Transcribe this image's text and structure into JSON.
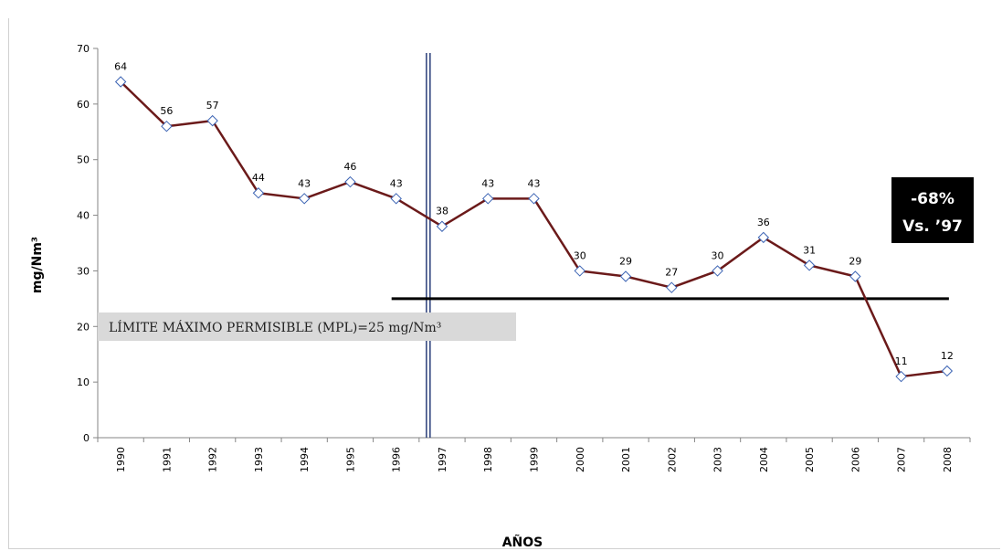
{
  "chart_data": {
    "type": "line",
    "title": "",
    "xlabel": "AÑOS",
    "ylabel": "mg/Nm³",
    "ylim": [
      0,
      70
    ],
    "yticks": [
      0,
      10,
      20,
      30,
      40,
      50,
      60,
      70
    ],
    "categories": [
      "1990",
      "1991",
      "1992",
      "1993",
      "1994",
      "1995",
      "1996",
      "1997",
      "1998",
      "1999",
      "2000",
      "2001",
      "2002",
      "2003",
      "2004",
      "2005",
      "2006",
      "2007",
      "2008"
    ],
    "series": [
      {
        "values": [
          64,
          56,
          57,
          44,
          43,
          46,
          43,
          38,
          43,
          43,
          30,
          29,
          27,
          30,
          36,
          31,
          29,
          11,
          12
        ],
        "color": "#6b1a1a",
        "marker": "diamond",
        "marker_color": "#3c64b4"
      }
    ],
    "reference_line": {
      "value": 25,
      "from_category": "1996",
      "to_category": "2008",
      "label": "LÍMITE MÁXIMO PERMISIBLE (MPL)=25 mg/Nm³",
      "color": "#000000"
    },
    "vertical_marker": {
      "category": "1997",
      "color": "#2a3f7a"
    },
    "callout": {
      "line1": "-68%",
      "line2": "Vs. ’97",
      "background": "#000000",
      "text_color": "#ffffff"
    },
    "grid": false,
    "legend": "none"
  }
}
